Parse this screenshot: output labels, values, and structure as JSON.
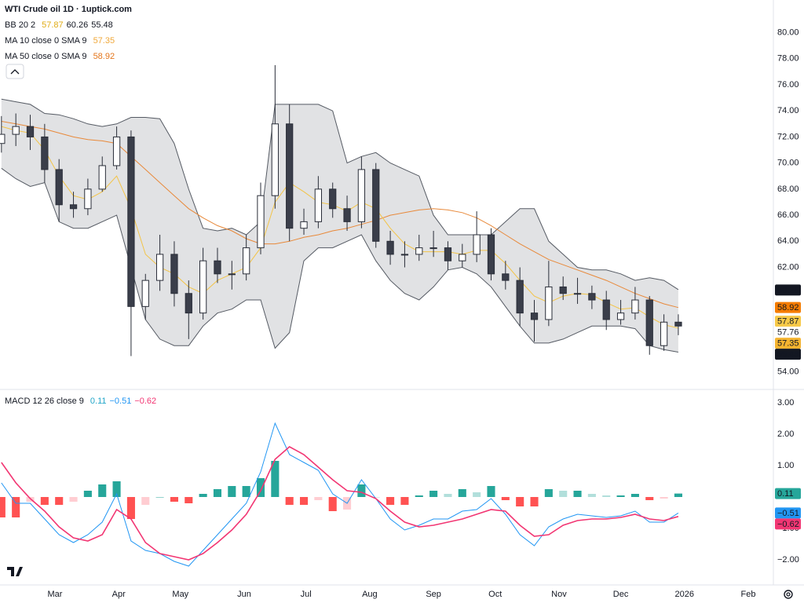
{
  "chart_data": [
    {
      "type": "candlestick",
      "title": "WTI Crude oil  1D · 1uptick.com",
      "indicators": [
        {
          "name": "BB 20 2",
          "values": [
            {
              "text": "57.87",
              "color": "#e0ac16"
            },
            {
              "text": "60.26",
              "color": "#131722"
            },
            {
              "text": "55.48",
              "color": "#131722"
            }
          ]
        },
        {
          "name": "MA 10 close 0 SMA 9",
          "values": [
            {
              "text": "57.35",
              "color": "#f0a83a"
            }
          ]
        },
        {
          "name": "MA 50 close 0 SMA 9",
          "values": [
            {
              "text": "58.92",
              "color": "#e4761c"
            }
          ]
        }
      ],
      "x": [
        2,
        9,
        16,
        23,
        30,
        37,
        44,
        51,
        58,
        65,
        72,
        79,
        86,
        93,
        100,
        107,
        114,
        121,
        128,
        135,
        142,
        149,
        156,
        163,
        170,
        177,
        184,
        191,
        198,
        205,
        212,
        219,
        226,
        233,
        240,
        247,
        254,
        261,
        268,
        275,
        282,
        289,
        296,
        303,
        310,
        317,
        324,
        331
      ],
      "open": [
        71.5,
        72.2,
        72.8,
        72,
        69.5,
        66.8,
        66.5,
        68,
        69.8,
        72,
        59,
        61,
        63,
        60,
        58.5,
        62.5,
        61.5,
        61.5,
        63.5,
        67.5,
        73,
        65,
        65.5,
        68,
        66.5,
        65.5,
        69.5,
        64,
        63,
        63,
        63.5,
        63.5,
        62.5,
        63,
        64.5,
        61.5,
        61,
        58.5,
        58,
        60.5,
        60,
        60,
        59.5,
        58,
        58.5,
        59.5,
        56,
        57.8
      ],
      "high": [
        73.6,
        73.8,
        73.7,
        73,
        70.3,
        67.8,
        68.8,
        70.5,
        72.8,
        72.5,
        61.5,
        64.5,
        64,
        61,
        63.5,
        63.5,
        62.5,
        64.5,
        68.5,
        77.5,
        74.5,
        66.5,
        69,
        68.5,
        67.5,
        70.5,
        70,
        64.8,
        64,
        64.5,
        64.8,
        64,
        63.8,
        66.3,
        65,
        62.5,
        62,
        59.5,
        62.5,
        61.3,
        61.2,
        60.6,
        60.2,
        59.5,
        60.5,
        59.8,
        58.4,
        58.4
      ],
      "low": [
        70.8,
        71.3,
        71,
        68.5,
        65.5,
        65.8,
        66,
        67.8,
        69.5,
        55.2,
        58,
        60.2,
        59,
        56.5,
        58,
        60.8,
        60.3,
        61,
        63,
        66.5,
        64,
        64.5,
        65,
        65.8,
        64.8,
        65,
        63.5,
        62.2,
        62,
        62.5,
        62.8,
        61.8,
        62,
        62.4,
        61,
        60.3,
        57.5,
        56.3,
        57.5,
        59.5,
        59.2,
        58.8,
        57.2,
        57.6,
        58,
        55.3,
        55.6,
        56.8
      ],
      "close": [
        72.2,
        72.8,
        72,
        69.5,
        66.8,
        66.5,
        68,
        69.8,
        72,
        59,
        61,
        63,
        60,
        58.5,
        62.5,
        61.5,
        61.5,
        63.5,
        67.5,
        73,
        65,
        65.5,
        68,
        66.5,
        65.5,
        69.5,
        64,
        63,
        63,
        63.5,
        63.5,
        62.5,
        63,
        64.5,
        61.5,
        61,
        58.5,
        58,
        60.5,
        60,
        60,
        59.5,
        58,
        58.5,
        59.5,
        56,
        57.8,
        57.5
      ],
      "bb_upper": [
        74.9,
        74.7,
        74.5,
        73.8,
        73.7,
        73.4,
        73,
        72.8,
        73,
        73.5,
        73.5,
        73.4,
        71.5,
        68,
        65,
        64.8,
        65,
        64.5,
        65.5,
        74.5,
        74.5,
        74.5,
        74.5,
        74,
        70,
        70.5,
        70.8,
        70,
        69.5,
        69,
        66,
        64.5,
        64.5,
        64.5,
        64.5,
        65.5,
        66.5,
        66.5,
        64,
        63,
        62,
        61.8,
        61.8,
        61.5,
        61,
        61.2,
        61,
        60.3
      ],
      "bb_lower": [
        69.6,
        68.8,
        68.2,
        68.5,
        65.5,
        65,
        65,
        65.5,
        66,
        62,
        58,
        56.5,
        56,
        56,
        57.5,
        58.5,
        58.8,
        59.5,
        59.5,
        55.8,
        57,
        62.5,
        63.5,
        63.5,
        64,
        64.5,
        62.5,
        61,
        60,
        59.5,
        60.5,
        61.8,
        62,
        61.5,
        60.5,
        59,
        57.5,
        56.2,
        56.2,
        56.5,
        57,
        57.5,
        57.5,
        57.5,
        57.3,
        56,
        55.7,
        55.5
      ],
      "ma10": [
        72.8,
        72.5,
        72.3,
        71,
        69,
        67.5,
        67.2,
        67.8,
        69,
        66.5,
        63,
        62,
        61.5,
        60.5,
        60,
        61,
        61.5,
        62,
        63.5,
        67,
        68.5,
        67.8,
        67,
        66.8,
        66.3,
        67,
        66.5,
        65,
        63.8,
        63.2,
        63.2,
        63.2,
        63,
        63.3,
        63.3,
        62.3,
        61,
        59.8,
        59.3,
        59.8,
        60,
        59.9,
        59.3,
        58.8,
        58.9,
        58.2,
        57.6,
        57.35
      ],
      "ma50": [
        73.2,
        73,
        72.8,
        72.6,
        72.3,
        72,
        71.8,
        71.7,
        71.5,
        70.5,
        69.5,
        68.5,
        67.5,
        66.5,
        65.8,
        65.2,
        64.8,
        64.2,
        63.8,
        63.8,
        64,
        64.3,
        64.5,
        64.8,
        65,
        65.3,
        65.6,
        66,
        66.2,
        66.4,
        66.5,
        66.4,
        66.2,
        65.8,
        65.2,
        64.5,
        63.8,
        63.2,
        62.6,
        62.2,
        61.8,
        61.4,
        61,
        60.5,
        60,
        59.6,
        59.2,
        58.92
      ],
      "up_color": "#ffffff",
      "down_color": "#3a3e4a",
      "wick_color": "#2a2e39",
      "bb_line_color": "#555a63",
      "bb_fill_color": "#d4d5d8",
      "ma10_color": "#f3c447",
      "ma50_color": "#e8893a",
      "xlim": [
        1.3,
        377.2
      ],
      "ylim": [
        52.7,
        82.5
      ],
      "yticks": [
        {
          "value": 80,
          "label": "80.00"
        },
        {
          "value": 78,
          "label": "78.00"
        },
        {
          "value": 76,
          "label": "76.00"
        },
        {
          "value": 74,
          "label": "74.00"
        },
        {
          "value": 72,
          "label": "72.00"
        },
        {
          "value": 70,
          "label": "70.00"
        },
        {
          "value": 68,
          "label": "68.00"
        },
        {
          "value": 66,
          "label": "66.00"
        },
        {
          "value": 64,
          "label": "64.00"
        },
        {
          "value": 62,
          "label": "62.00"
        },
        {
          "value": 54,
          "label": "54.00"
        }
      ],
      "price_labels": [
        {
          "value": 60.26,
          "label": "60.26",
          "color": "#131722",
          "text_color": "#ffffff"
        },
        {
          "value": 58.92,
          "label": "58.92",
          "color": "#f57c00",
          "text_color": "#ffffff"
        },
        {
          "value": 57.87,
          "label": "57.87",
          "color": "#f7c948",
          "text_color": "#131722"
        },
        {
          "value": 57.76,
          "label": "57.76",
          "color": "#ffffff",
          "text_color": "#131722"
        },
        {
          "value": 57.35,
          "label": "57.35",
          "color": "#f5b430",
          "text_color": "#131722"
        },
        {
          "value": 55.48,
          "label": "55.48",
          "color": "#131722",
          "text_color": "#ffffff"
        }
      ]
    },
    {
      "type": "macd",
      "title": "MACD 12 26 close 9",
      "legend_values": [
        {
          "text": "0.11",
          "color": "#22a6c9"
        },
        {
          "text": "−0.51",
          "color": "#2196f3"
        },
        {
          "text": "−0.62",
          "color": "#f23673"
        }
      ],
      "macd": [
        0.45,
        -0.2,
        -0.2,
        -0.7,
        -1.2,
        -1.45,
        -1.2,
        -0.8,
        0.1,
        -1.4,
        -1.7,
        -1.8,
        -2.05,
        -2.2,
        -1.7,
        -1.2,
        -0.7,
        -0.2,
        0.8,
        2.35,
        1.35,
        1.1,
        0.85,
        0.1,
        -0.2,
        0.55,
        -0.05,
        -0.7,
        -1.05,
        -0.9,
        -0.7,
        -0.7,
        -0.45,
        -0.4,
        -0.05,
        -0.55,
        -1.2,
        -1.55,
        -0.95,
        -0.7,
        -0.55,
        -0.6,
        -0.65,
        -0.6,
        -0.45,
        -0.8,
        -0.8,
        -0.51
      ],
      "signal": [
        1.1,
        0.45,
        -0.05,
        -0.45,
        -0.95,
        -1.3,
        -1.4,
        -1.2,
        -0.4,
        -0.7,
        -1.45,
        -1.8,
        -1.9,
        -2,
        -1.8,
        -1.45,
        -1.05,
        -0.55,
        0.2,
        1.2,
        1.6,
        1.35,
        0.95,
        0.55,
        0.2,
        0.15,
        -0.05,
        -0.45,
        -0.8,
        -0.95,
        -0.9,
        -0.8,
        -0.7,
        -0.55,
        -0.4,
        -0.45,
        -0.9,
        -1.25,
        -1.2,
        -0.9,
        -0.75,
        -0.7,
        -0.7,
        -0.65,
        -0.55,
        -0.7,
        -0.75,
        -0.62
      ],
      "histogram": [
        -0.65,
        -0.65,
        -0.15,
        -0.25,
        -0.25,
        -0.15,
        0.2,
        0.4,
        0.5,
        -0.7,
        -0.25,
        0,
        -0.15,
        -0.2,
        0.1,
        0.25,
        0.35,
        0.35,
        0.6,
        1.15,
        -0.25,
        -0.25,
        -0.1,
        -0.45,
        -0.4,
        0.4,
        0,
        -0.25,
        -0.25,
        0.05,
        0.2,
        0.1,
        0.25,
        0.15,
        0.35,
        -0.1,
        -0.3,
        -0.3,
        0.25,
        0.2,
        0.2,
        0.1,
        0.05,
        0.05,
        0.1,
        -0.1,
        -0.05,
        0.11
      ],
      "macd_color": "#2196f3",
      "signal_color": "#f23673",
      "hist_colors": [
        "#26a69a",
        "#b2dfdb",
        "#ff5252",
        "#ffcdd2"
      ],
      "ylim": [
        -2.8,
        3.4
      ],
      "yticks": [
        {
          "value": 3,
          "label": "3.00"
        },
        {
          "value": 2,
          "label": "2.00"
        },
        {
          "value": 1,
          "label": "1.00"
        },
        {
          "value": -1,
          "label": "−1.00"
        },
        {
          "value": -2,
          "label": "−2.00"
        }
      ],
      "xticks": [
        {
          "value": 28,
          "label": "Mar"
        },
        {
          "value": 59,
          "label": "Apr"
        },
        {
          "value": 89,
          "label": "May"
        },
        {
          "value": 120,
          "label": "Jun"
        },
        {
          "value": 150,
          "label": "Jul"
        },
        {
          "value": 181,
          "label": "Aug"
        },
        {
          "value": 212,
          "label": "Sep"
        },
        {
          "value": 242,
          "label": "Oct"
        },
        {
          "value": 273,
          "label": "Nov"
        },
        {
          "value": 303,
          "label": "Dec"
        },
        {
          "value": 334,
          "label": "2026"
        },
        {
          "value": 365,
          "label": "Feb"
        }
      ],
      "price_labels": [
        {
          "value": 0.11,
          "label": "0.11",
          "color": "#26a69a",
          "text_color": "#ffffff"
        },
        {
          "value": -0.51,
          "label": "−0.51",
          "color": "#2196f3",
          "text_color": "#ffffff"
        },
        {
          "value": -0.62,
          "label": "−0.62",
          "color": "#f23673",
          "text_color": "#ffffff"
        }
      ]
    }
  ]
}
